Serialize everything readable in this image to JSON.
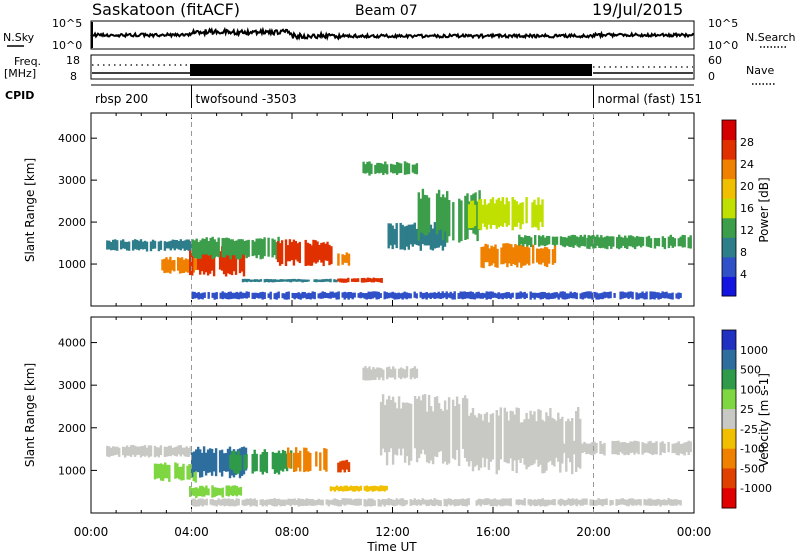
{
  "header": {
    "station": "Saskatoon (fitACF)",
    "beam": "Beam 07",
    "date": "19/Jul/2015"
  },
  "summary": {
    "nsky_label": "N.Sky",
    "nsky_ticks": [
      "10^5",
      "10^0"
    ],
    "nsearch_label": "N.Search",
    "nsearch_ticks": [
      "10^5",
      "10^0"
    ],
    "freq_label": "Freq.",
    "freq_unit": "[MHz]",
    "freq_ticks": [
      "18",
      "8"
    ],
    "nave_label": "Nave",
    "nave_ticks": [
      "60",
      "0"
    ],
    "cpid_label": "CPID",
    "modes": [
      {
        "start": 0,
        "end": 4,
        "label": "rbsp 200"
      },
      {
        "start": 4,
        "end": 20,
        "label": "twofsound -3503"
      },
      {
        "start": 20,
        "end": 24,
        "label": "normal (fast) 151"
      }
    ]
  },
  "colors": {
    "power": [
      "#1414e0",
      "#3050c8",
      "#2e7d8a",
      "#3c9e4a",
      "#bfe000",
      "#f0c000",
      "#f08000",
      "#e03000",
      "#d40000"
    ],
    "velocity": [
      "#2030c0",
      "#2e6e9e",
      "#2e9a4a",
      "#7ed640",
      "#c8c8c4",
      "#f0c000",
      "#f08000",
      "#e04000",
      "#e00000"
    ]
  },
  "chart_data": [
    {
      "type": "heatmap",
      "name": "power",
      "xlabel": "",
      "ylabel": "Slant Range [km]",
      "xlim": [
        0,
        24
      ],
      "ylim": [
        0,
        4600
      ],
      "yticks": [
        "1000",
        "2000",
        "3000",
        "4000"
      ],
      "colorbar": {
        "label": "Power [dB]",
        "ticks": [
          "4",
          "8",
          "12",
          "16",
          "20",
          "24",
          "28"
        ],
        "range": [
          0,
          32
        ]
      },
      "patches": [
        {
          "t0": 0.6,
          "t1": 4.0,
          "r0": 1300,
          "r1": 1600,
          "v": 8
        },
        {
          "t0": 2.8,
          "t1": 4.2,
          "r0": 750,
          "r1": 1200,
          "v": 22
        },
        {
          "t0": 3.9,
          "t1": 6.2,
          "r0": 700,
          "r1": 1500,
          "v": 26
        },
        {
          "t0": 4.0,
          "t1": 7.5,
          "r0": 1100,
          "r1": 1650,
          "v": 14
        },
        {
          "t0": 7.4,
          "t1": 9.2,
          "r0": 950,
          "r1": 1600,
          "v": 27
        },
        {
          "t0": 8.6,
          "t1": 9.6,
          "r0": 950,
          "r1": 1550,
          "v": 26
        },
        {
          "t0": 9.8,
          "t1": 10.3,
          "r0": 950,
          "r1": 1300,
          "v": 24
        },
        {
          "t0": 9.8,
          "t1": 11.6,
          "r0": 550,
          "r1": 680,
          "v": 28
        },
        {
          "t0": 6.0,
          "t1": 9.8,
          "r0": 560,
          "r1": 650,
          "v": 8
        },
        {
          "t0": 10.8,
          "t1": 13.0,
          "r0": 3100,
          "r1": 3450,
          "v": 12
        },
        {
          "t0": 11.8,
          "t1": 14.2,
          "r0": 1300,
          "r1": 2000,
          "v": 10
        },
        {
          "t0": 13.0,
          "t1": 15.5,
          "r0": 1500,
          "r1": 2800,
          "v": 14
        },
        {
          "t0": 15.5,
          "t1": 18.5,
          "r0": 900,
          "r1": 1500,
          "v": 24
        },
        {
          "t0": 15.0,
          "t1": 18.0,
          "r0": 1800,
          "r1": 2600,
          "v": 16
        },
        {
          "t0": 17.0,
          "t1": 20.0,
          "r0": 1400,
          "r1": 1700,
          "v": 14
        },
        {
          "t0": 19.0,
          "t1": 23.9,
          "r0": 1350,
          "r1": 1700,
          "v": 12
        },
        {
          "t0": 4.0,
          "t1": 23.5,
          "r0": 150,
          "r1": 350,
          "v": 4
        }
      ]
    },
    {
      "type": "heatmap",
      "name": "velocity",
      "xlabel": "Time UT",
      "ylabel": "Slant Range [km]",
      "xlim": [
        0,
        24
      ],
      "ylim": [
        0,
        4600
      ],
      "xticks": [
        "00:00",
        "04:00",
        "08:00",
        "12:00",
        "16:00",
        "20:00",
        "00:00"
      ],
      "yticks": [
        "1000",
        "2000",
        "3000",
        "4000"
      ],
      "colorbar": {
        "label": "Velocity [m s-1]",
        "ticks": [
          "1000",
          "500",
          "100",
          "25",
          "-25",
          "-100",
          "-500",
          "-1000"
        ]
      },
      "patches": [
        {
          "t0": 0.6,
          "t1": 4.0,
          "r0": 1300,
          "r1": 1600,
          "v": 4
        },
        {
          "t0": 2.5,
          "t1": 4.2,
          "r0": 700,
          "r1": 1200,
          "v": 3
        },
        {
          "t0": 3.9,
          "t1": 6.2,
          "r0": 800,
          "r1": 1600,
          "v": 1
        },
        {
          "t0": 5.5,
          "t1": 8.0,
          "r0": 900,
          "r1": 1500,
          "v": 2
        },
        {
          "t0": 7.8,
          "t1": 9.4,
          "r0": 950,
          "r1": 1550,
          "v": 6
        },
        {
          "t0": 9.8,
          "t1": 10.3,
          "r0": 950,
          "r1": 1250,
          "v": 7
        },
        {
          "t0": 9.5,
          "t1": 11.8,
          "r0": 500,
          "r1": 650,
          "v": 5
        },
        {
          "t0": 10.8,
          "t1": 13.0,
          "r0": 3100,
          "r1": 3450,
          "v": 4
        },
        {
          "t0": 11.5,
          "t1": 15.0,
          "r0": 1100,
          "r1": 2800,
          "v": 4
        },
        {
          "t0": 15.0,
          "t1": 19.5,
          "r0": 900,
          "r1": 2500,
          "v": 4
        },
        {
          "t0": 18.0,
          "t1": 23.9,
          "r0": 1350,
          "r1": 1700,
          "v": 4
        },
        {
          "t0": 3.9,
          "t1": 6.0,
          "r0": 350,
          "r1": 650,
          "v": 3
        },
        {
          "t0": 4.0,
          "t1": 23.5,
          "r0": 150,
          "r1": 350,
          "v": 4
        }
      ]
    }
  ]
}
